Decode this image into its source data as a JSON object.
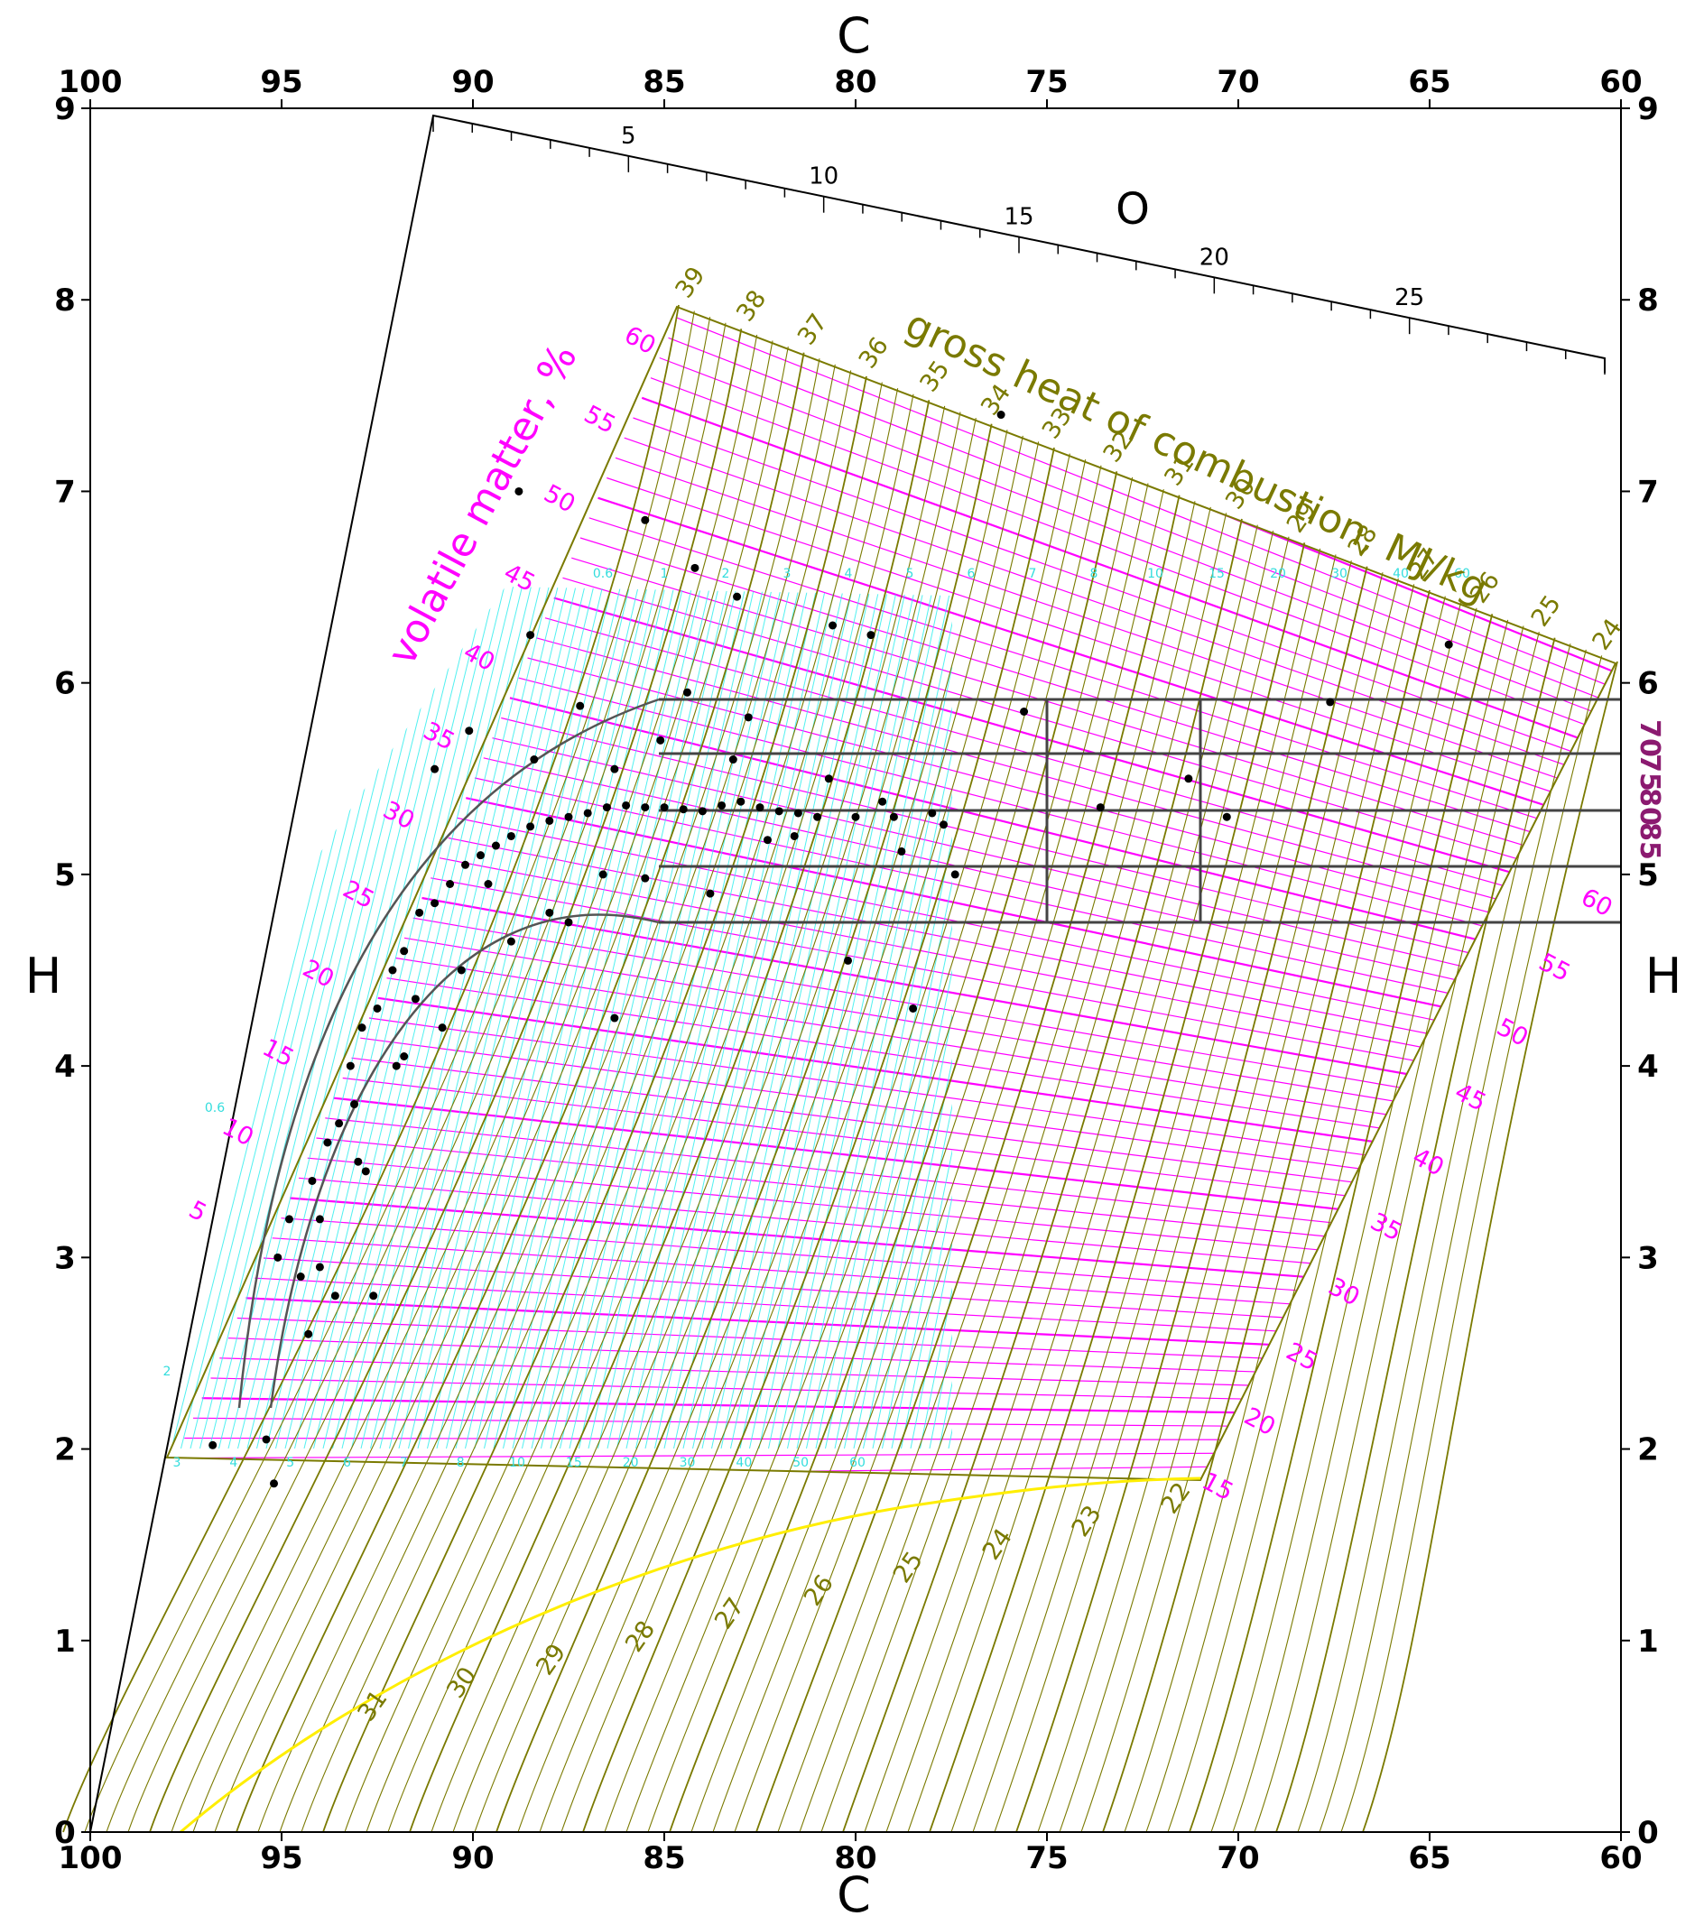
{
  "chart_data": {
    "type": "scatter",
    "title": "",
    "xlabel": "C",
    "ylabel": "H",
    "xlim": [
      100,
      60
    ],
    "ylim": [
      0,
      9
    ],
    "x_ticks": [
      "100",
      "95",
      "90",
      "85",
      "80",
      "75",
      "70",
      "65",
      "60"
    ],
    "y_ticks": [
      "0",
      "1",
      "2",
      "3",
      "4",
      "5",
      "6",
      "7",
      "8",
      "9"
    ],
    "oxygen_axis": {
      "label": "O",
      "ticks": [
        "5",
        "10",
        "15",
        "20",
        "25"
      ]
    },
    "heat_of_combustion": {
      "label": "gross heat of combustion, MJ/kg",
      "upper_ticks": [
        "39",
        "38",
        "37",
        "36",
        "35",
        "34",
        "33",
        "32",
        "31",
        "30",
        "29",
        "28",
        "27",
        "26",
        "25",
        "24"
      ],
      "lower_ticks": [
        "31",
        "30",
        "29",
        "28",
        "27",
        "26",
        "25",
        "24",
        "23",
        "22"
      ]
    },
    "volatile_matter": {
      "label": "volatile matter, %",
      "upper_ticks": [
        "60",
        "55",
        "50",
        "45",
        "40",
        "35",
        "30",
        "25",
        "20",
        "15",
        "10",
        "5"
      ],
      "lower_ticks": [
        "60",
        "55",
        "50",
        "45",
        "40",
        "35",
        "30",
        "25",
        "20",
        "15"
      ]
    },
    "cyan_ticks_top": [
      "0.6",
      "1",
      "2",
      "3",
      "4",
      "5",
      "6",
      "7",
      "8",
      "10",
      "15",
      "20",
      "30",
      "40",
      "60"
    ],
    "cyan_ticks_bottom": [
      "3",
      "4",
      "5",
      "6",
      "7",
      "8",
      "10",
      "15",
      "20",
      "30",
      "40",
      "50",
      "60"
    ],
    "cyan_ticks_left": [
      "0.6",
      "2"
    ],
    "right_edge_labels": [
      "70",
      "75",
      "80",
      "85"
    ],
    "series": [
      {
        "points": [
          [
            96.8,
            2.02
          ],
          [
            95.4,
            2.05
          ],
          [
            95.2,
            1.82
          ],
          [
            94.5,
            2.9
          ],
          [
            94.8,
            3.2
          ],
          [
            95.1,
            3.0
          ],
          [
            94.2,
            3.4
          ],
          [
            93.8,
            3.6
          ],
          [
            93.5,
            3.7
          ],
          [
            93.2,
            4.0
          ],
          [
            92.9,
            4.2
          ],
          [
            92.5,
            4.3
          ],
          [
            92.1,
            4.5
          ],
          [
            91.8,
            4.6
          ],
          [
            91.4,
            4.8
          ],
          [
            91.0,
            4.85
          ],
          [
            90.6,
            4.95
          ],
          [
            90.2,
            5.05
          ],
          [
            89.8,
            5.1
          ],
          [
            89.4,
            5.15
          ],
          [
            89.0,
            5.2
          ],
          [
            88.5,
            5.25
          ],
          [
            88.0,
            5.28
          ],
          [
            87.5,
            5.3
          ],
          [
            87.0,
            5.32
          ],
          [
            86.5,
            5.35
          ],
          [
            86.0,
            5.36
          ],
          [
            85.5,
            5.35
          ],
          [
            85.0,
            5.35
          ],
          [
            84.5,
            5.34
          ],
          [
            84.0,
            5.33
          ],
          [
            83.5,
            5.36
          ],
          [
            83.0,
            5.38
          ],
          [
            82.5,
            5.35
          ],
          [
            82.0,
            5.33
          ],
          [
            81.5,
            5.32
          ],
          [
            81.0,
            5.3
          ],
          [
            80.0,
            5.3
          ],
          [
            79.0,
            5.3
          ],
          [
            78.0,
            5.32
          ],
          [
            88.8,
            7.0
          ],
          [
            85.5,
            6.85
          ],
          [
            84.2,
            6.6
          ],
          [
            83.1,
            6.45
          ],
          [
            79.6,
            6.25
          ],
          [
            88.5,
            6.25
          ],
          [
            80.6,
            6.3
          ],
          [
            90.1,
            5.75
          ],
          [
            91.0,
            5.55
          ],
          [
            71.3,
            5.5
          ],
          [
            70.3,
            5.3
          ],
          [
            67.6,
            5.9
          ],
          [
            64.5,
            6.2
          ],
          [
            76.2,
            7.4
          ],
          [
            86.3,
            4.25
          ],
          [
            78.5,
            4.3
          ],
          [
            80.2,
            4.55
          ],
          [
            75.6,
            5.85
          ],
          [
            77.4,
            5.0
          ],
          [
            73.6,
            5.35
          ],
          [
            91.5,
            4.35
          ],
          [
            91.8,
            4.05
          ],
          [
            94.0,
            2.95
          ],
          [
            93.1,
            3.8
          ],
          [
            92.8,
            3.45
          ],
          [
            89.6,
            4.95
          ],
          [
            87.5,
            4.75
          ],
          [
            86.3,
            5.55
          ],
          [
            85.1,
            5.7
          ],
          [
            83.2,
            5.6
          ],
          [
            82.3,
            5.18
          ],
          [
            81.6,
            5.2
          ],
          [
            80.7,
            5.5
          ],
          [
            79.3,
            5.38
          ],
          [
            78.8,
            5.12
          ],
          [
            77.7,
            5.26
          ],
          [
            86.6,
            5.0
          ],
          [
            88.4,
            5.6
          ],
          [
            87.2,
            5.88
          ],
          [
            84.4,
            5.95
          ],
          [
            82.8,
            5.82
          ],
          [
            83.8,
            4.9
          ],
          [
            85.5,
            4.98
          ],
          [
            88.0,
            4.8
          ],
          [
            89.0,
            4.65
          ],
          [
            90.3,
            4.5
          ],
          [
            92.0,
            4.0
          ],
          [
            93.0,
            3.5
          ],
          [
            94.0,
            3.2
          ],
          [
            93.6,
            2.8
          ],
          [
            94.3,
            2.6
          ],
          [
            92.6,
            2.8
          ],
          [
            90.8,
            4.2
          ]
        ]
      }
    ]
  }
}
